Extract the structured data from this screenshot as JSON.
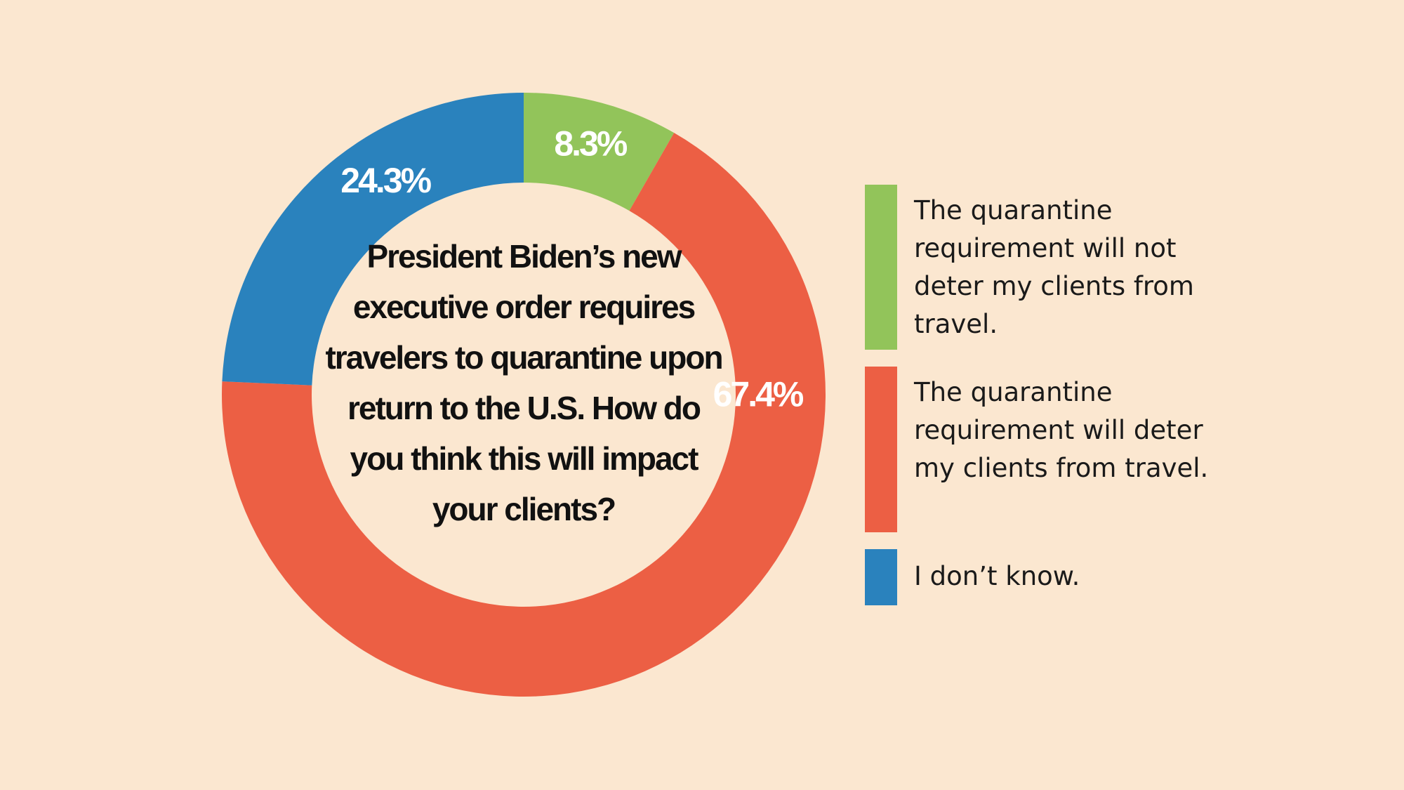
{
  "chart_data": {
    "type": "pie",
    "subtype": "donut",
    "title": "President Biden’s new executive order requires travelers to quarantine upon return to the U.S. How do you think this will impact your clients?",
    "slices": [
      {
        "label": "The quarantine requirement will not deter my clients from travel.",
        "value": 8.3,
        "display": "8.3%",
        "color": "#92C45A"
      },
      {
        "label": "The quarantine requirement will deter my clients from travel.",
        "value": 67.4,
        "display": "67.4%",
        "color": "#EC5F44"
      },
      {
        "label": "I don’t know.",
        "value": 24.3,
        "display": "24.3%",
        "color": "#2A82BD"
      }
    ],
    "legend_position": "right"
  }
}
